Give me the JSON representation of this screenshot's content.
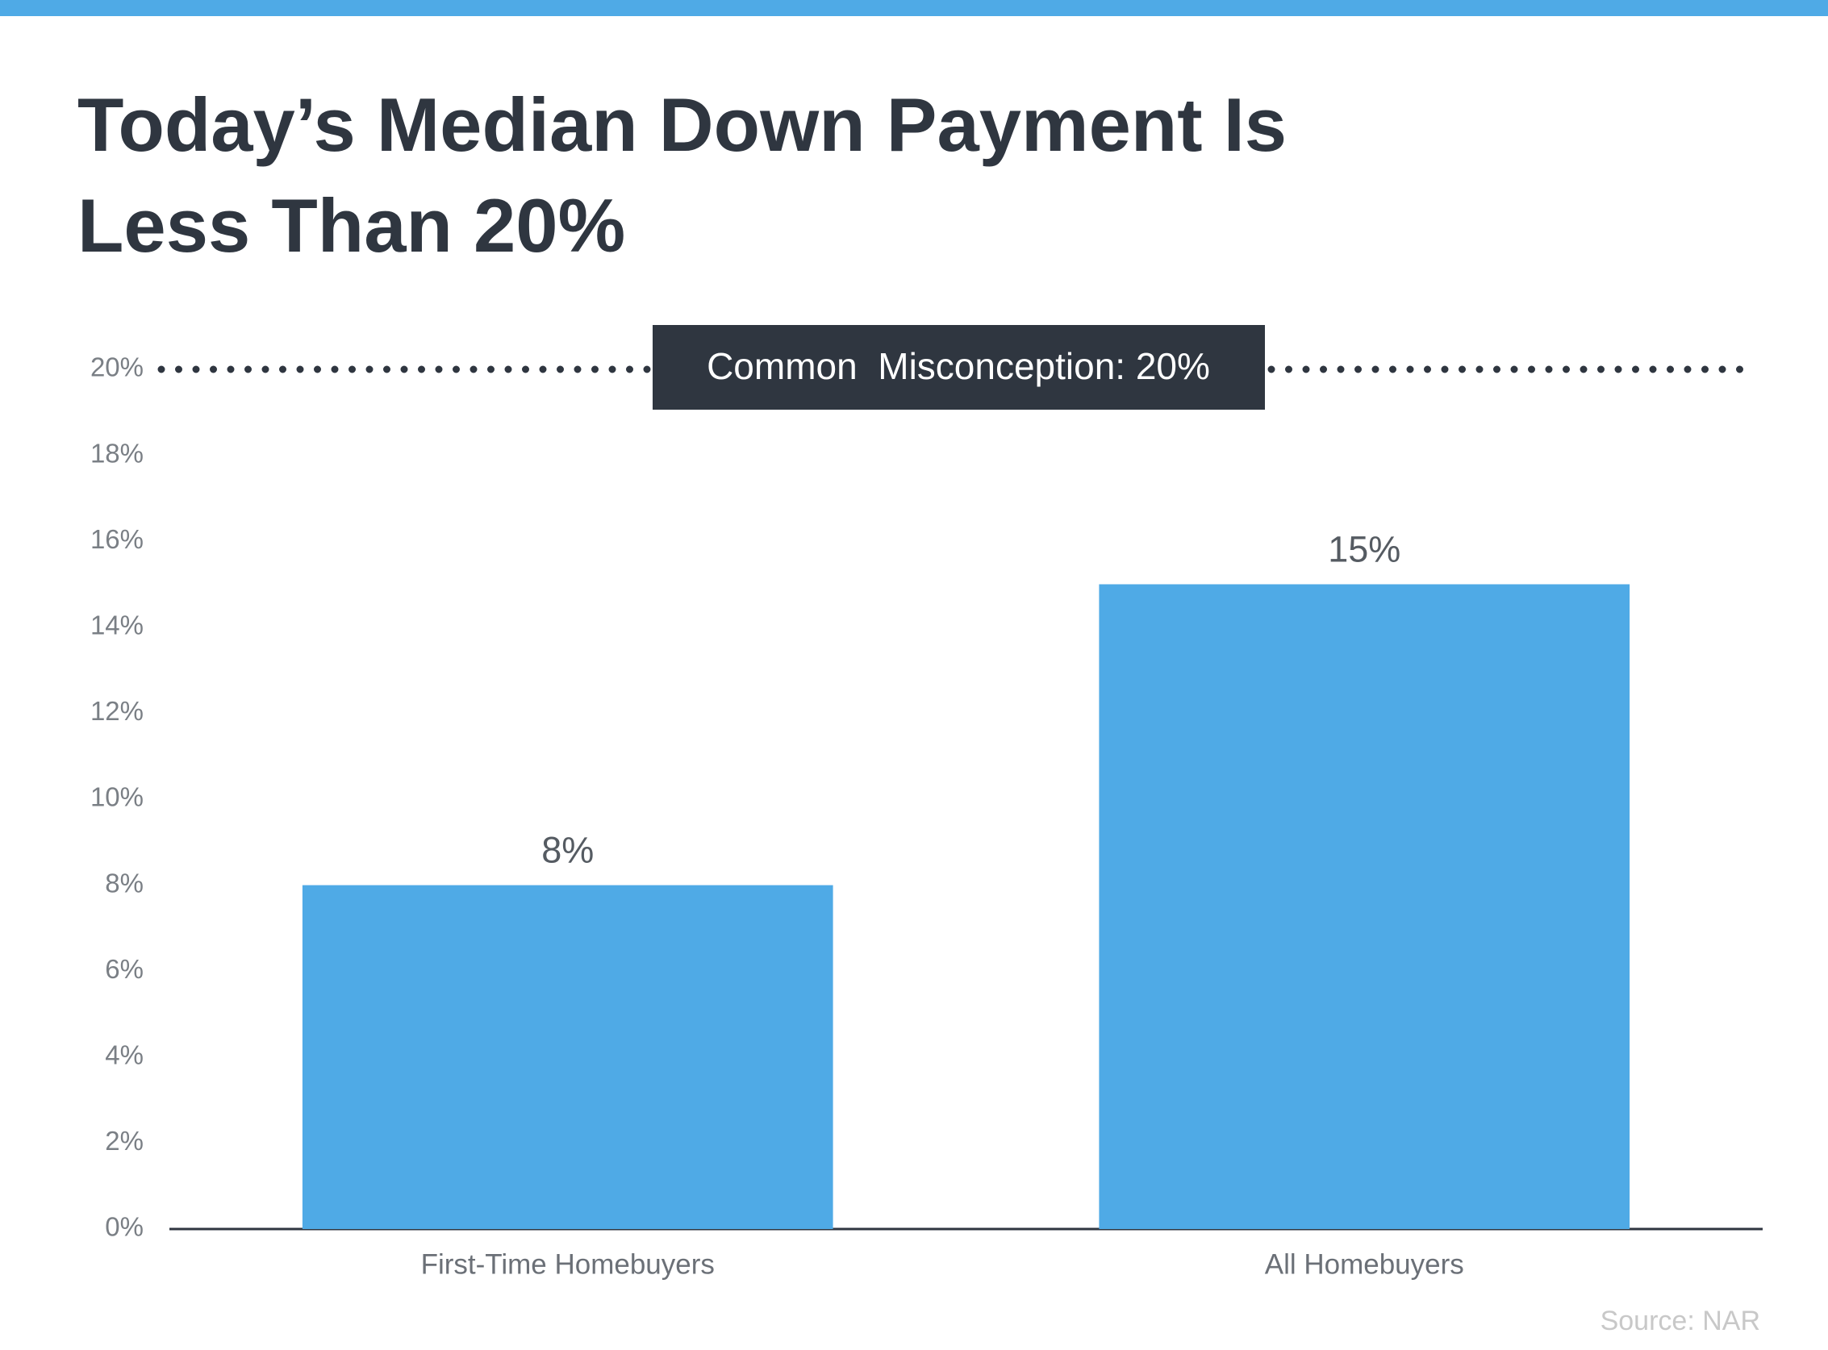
{
  "chart_data": {
    "type": "bar",
    "title": "Today’s Median Down Payment Is Less Than 20%",
    "categories": [
      "First-Time Homebuyers",
      "All Homebuyers"
    ],
    "values": [
      8,
      15
    ],
    "value_labels": [
      "8%",
      "15%"
    ],
    "color": "#4faae6",
    "ylim": [
      0,
      20
    ],
    "yticks": [
      {
        "value": 0,
        "label": "0%"
      },
      {
        "value": 2,
        "label": "2%"
      },
      {
        "value": 4,
        "label": "4%"
      },
      {
        "value": 6,
        "label": "6%"
      },
      {
        "value": 8,
        "label": "8%"
      },
      {
        "value": 10,
        "label": "10%"
      },
      {
        "value": 12,
        "label": "12%"
      },
      {
        "value": 14,
        "label": "14%"
      },
      {
        "value": 16,
        "label": "16%"
      },
      {
        "value": 18,
        "label": "18%"
      },
      {
        "value": 20,
        "label": "20%"
      }
    ],
    "grid": false,
    "reference_line": {
      "value": 20,
      "label": "Common  Misconception: 20%"
    },
    "source": "Source: NAR"
  }
}
